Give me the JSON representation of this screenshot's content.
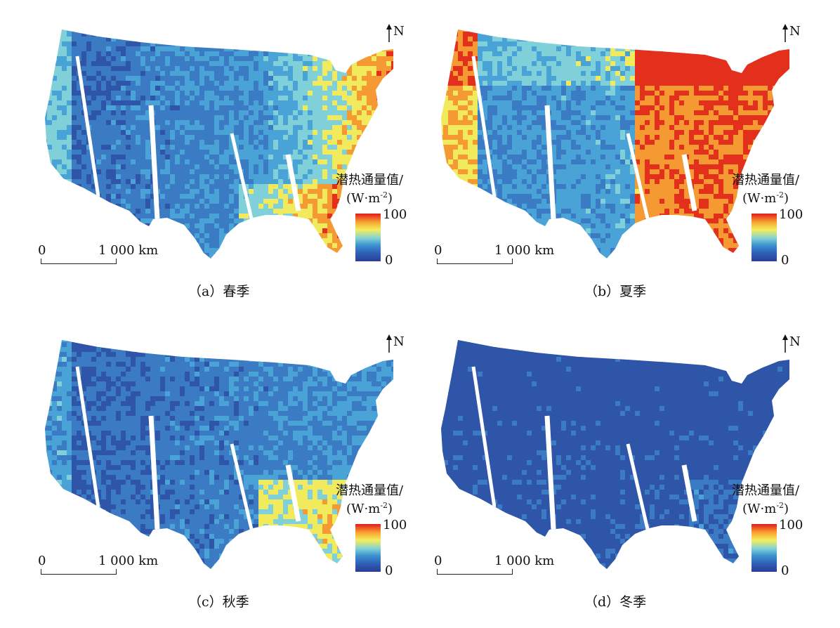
{
  "panels": [
    {
      "id": "a",
      "caption": "（a）春季",
      "season": "spring",
      "palette": [
        "#2f55a8",
        "#3a7bc3",
        "#4aa3d6",
        "#7fd0d8",
        "#f1ea5c",
        "#f59a32",
        "#e3301c"
      ],
      "legend": {
        "title": "潜热通量值/",
        "unit": "(W·m",
        "unit_sup": "-2",
        "unit_end": ")",
        "max": "100",
        "min": "0"
      },
      "scale": {
        "zero": "0",
        "length": "1 000 km"
      },
      "north": "N"
    },
    {
      "id": "b",
      "caption": "（b）夏季",
      "season": "summer",
      "palette": [
        "#2f55a8",
        "#3a7bc3",
        "#4aa3d6",
        "#7fd0d8",
        "#f1ea5c",
        "#f59a32",
        "#e3301c"
      ],
      "legend": {
        "title": "潜热通量值/",
        "unit": "(W·m",
        "unit_sup": "-2",
        "unit_end": ")",
        "max": "100",
        "min": "0"
      },
      "scale": {
        "zero": "0",
        "length": "1 000 km"
      },
      "north": "N"
    },
    {
      "id": "c",
      "caption": "（c）秋季",
      "season": "autumn",
      "palette": [
        "#2f55a8",
        "#3a7bc3",
        "#4aa3d6",
        "#7fd0d8",
        "#f1ea5c",
        "#f59a32",
        "#e3301c"
      ],
      "legend": {
        "title": "潜热通量值/",
        "unit": "(W·m",
        "unit_sup": "-2",
        "unit_end": ")",
        "max": "100",
        "min": "0"
      },
      "scale": {
        "zero": "0",
        "length": "1 000 km"
      },
      "north": "N"
    },
    {
      "id": "d",
      "caption": "（d）冬季",
      "season": "winter",
      "palette": [
        "#2f55a8",
        "#3a7bc3",
        "#4aa3d6",
        "#7fd0d8",
        "#f1ea5c",
        "#f59a32",
        "#e3301c"
      ],
      "legend": {
        "title": "潜热通量值/",
        "unit": "(W·m",
        "unit_sup": "-2",
        "unit_end": ")",
        "max": "100",
        "min": "0"
      },
      "scale": {
        "zero": "0",
        "length": "1 000 km"
      },
      "north": "N"
    }
  ]
}
